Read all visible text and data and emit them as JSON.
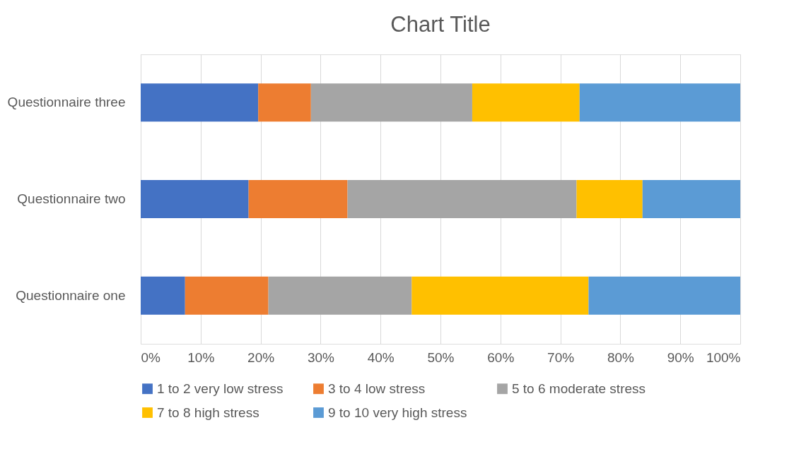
{
  "chart_data": {
    "type": "bar",
    "title": "Chart Title",
    "orientation": "horizontal",
    "stacked": true,
    "categories": [
      "Questionnaire three",
      "Questionnaire two",
      "Questionnaire one"
    ],
    "series": [
      {
        "name": "1 to 2 very low stress",
        "color": "#4472c4",
        "values": [
          19.6,
          18.0,
          7.4
        ]
      },
      {
        "name": "3 to 4 low stress",
        "color": "#ed7d31",
        "values": [
          8.8,
          16.5,
          13.9
        ]
      },
      {
        "name": "5 to 6 moderate stress",
        "color": "#a5a5a5",
        "values": [
          26.9,
          38.2,
          23.9
        ]
      },
      {
        "name": "7 to 8 high stress",
        "color": "#ffc000",
        "values": [
          17.9,
          11.0,
          29.5
        ]
      },
      {
        "name": "9 to 10 very high stress",
        "color": "#5b9bd5",
        "values": [
          26.8,
          16.3,
          25.3
        ]
      }
    ],
    "xlim": [
      0,
      100
    ],
    "xticks": [
      {
        "value": 0,
        "label": "0%"
      },
      {
        "value": 10,
        "label": "10%"
      },
      {
        "value": 20,
        "label": "20%"
      },
      {
        "value": 30,
        "label": "30%"
      },
      {
        "value": 40,
        "label": "40%"
      },
      {
        "value": 50,
        "label": "50%"
      },
      {
        "value": 60,
        "label": "60%"
      },
      {
        "value": 70,
        "label": "70%"
      },
      {
        "value": 80,
        "label": "80%"
      },
      {
        "value": 90,
        "label": "90%"
      },
      {
        "value": 100,
        "label": "100%"
      }
    ],
    "grid": "x",
    "legend": "bottom"
  }
}
